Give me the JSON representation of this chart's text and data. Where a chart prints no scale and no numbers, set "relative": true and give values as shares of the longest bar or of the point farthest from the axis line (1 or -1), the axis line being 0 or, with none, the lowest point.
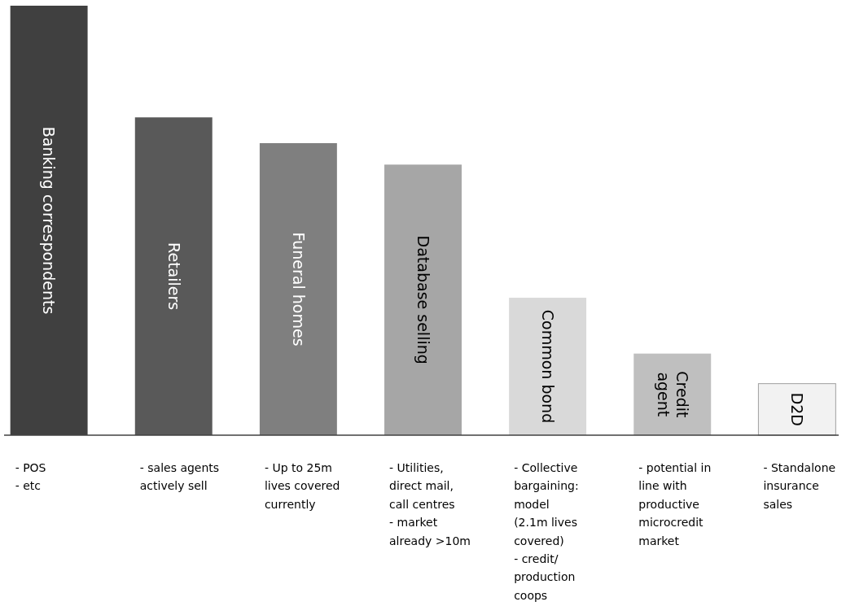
{
  "chart_data": {
    "type": "bar",
    "relative": true,
    "categories": [
      "Banking correspondents",
      "Retailers",
      "Funeral homes",
      "Database selling",
      "Common bond",
      "Credit agent",
      "D2D"
    ],
    "values": [
      1,
      0.74,
      0.68,
      0.63,
      0.32,
      0.19,
      0.12
    ],
    "colors": [
      "#404040",
      "#595959",
      "#7f7f7f",
      "#a6a6a6",
      "#d9d9d9",
      "#bfbfbf",
      "#f2f2f2"
    ],
    "annotations": [
      "- POS\n- etc",
      "- sales agents\nactively sell",
      "- Up to 25m\nlives covered\ncurrently",
      "- Utilities,\ndirect mail,\ncall centres\n- market\nalready >10m",
      "- Collective\nbargaining:\nmodel\n(2.1m lives\ncovered)\n- credit/\nproduction\ncoops",
      "- potential in\nline with\nproductive\nmicrocredit\nmarket",
      "- Standalone\ninsurance\nsales"
    ]
  }
}
